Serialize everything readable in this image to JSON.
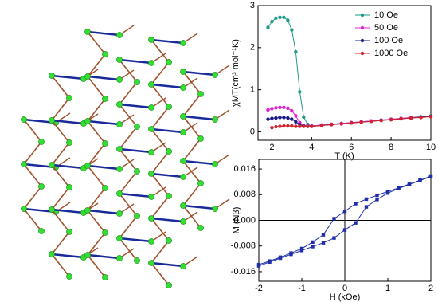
{
  "chart_data": [
    {
      "type": "line",
      "x_label": "T (K)",
      "y_label": "χMT(cm³ mol⁻¹K)",
      "x": [
        1.8,
        2.0,
        2.2,
        2.4,
        2.6,
        2.8,
        3.0,
        3.2,
        3.4,
        3.6,
        3.8,
        4.0,
        4.5,
        5,
        5.5,
        6,
        6.5,
        7,
        7.5,
        8,
        8.5,
        9,
        9.5,
        10
      ],
      "series": [
        {
          "name": "10 Oe",
          "color": "#1f9a8a",
          "values": [
            2.48,
            2.62,
            2.7,
            2.72,
            2.72,
            2.65,
            2.42,
            1.9,
            0.95,
            0.35,
            0.18,
            0.14,
            0.16,
            0.18,
            0.2,
            0.22,
            0.24,
            0.26,
            0.28,
            0.3,
            0.32,
            0.34,
            0.36,
            0.38
          ]
        },
        {
          "name": "50 Oe",
          "color": "#e020d0",
          "values": [
            0.52,
            0.55,
            0.57,
            0.58,
            0.58,
            0.56,
            0.5,
            0.38,
            0.22,
            0.15,
            0.14,
            0.14,
            0.16,
            0.18,
            0.2,
            0.22,
            0.24,
            0.26,
            0.28,
            0.3,
            0.32,
            0.34,
            0.35,
            0.37
          ]
        },
        {
          "name": "100 Oe",
          "color": "#1c1c8c",
          "values": [
            0.3,
            0.32,
            0.33,
            0.34,
            0.34,
            0.33,
            0.3,
            0.24,
            0.17,
            0.14,
            0.13,
            0.13,
            0.15,
            0.17,
            0.19,
            0.21,
            0.23,
            0.25,
            0.27,
            0.29,
            0.31,
            0.33,
            0.35,
            0.37
          ]
        },
        {
          "name": "1000 Oe",
          "color": "#d8202a",
          "values": [
            null,
            0.1,
            0.12,
            0.13,
            0.14,
            0.14,
            0.14,
            0.13,
            0.13,
            0.13,
            0.13,
            0.13,
            0.15,
            0.17,
            0.19,
            0.21,
            0.23,
            0.25,
            0.27,
            0.29,
            0.31,
            0.33,
            0.34,
            0.36
          ]
        }
      ],
      "xlim": [
        1.3,
        10
      ],
      "xticks": [
        2,
        4,
        6,
        8,
        10
      ],
      "ylim": [
        -0.2,
        3
      ],
      "yticks": [
        0,
        1,
        2,
        3
      ],
      "legend": "top-right"
    },
    {
      "type": "line",
      "x_label": "H (kOe)",
      "y_label": "M (Nβ)",
      "series": [
        {
          "color": "#1f2fa8",
          "x": [
            2,
            1.75,
            1.5,
            1.25,
            1,
            0.75,
            0.5,
            0.25,
            0,
            -0.25,
            -0.5,
            -0.75,
            -1,
            -1.25,
            -1.5,
            -1.75,
            -2
          ],
          "values": [
            0.0138,
            0.0125,
            0.0113,
            0.0101,
            0.009,
            0.0078,
            0.0066,
            0.0052,
            0.0028,
            0.0005,
            -0.0045,
            -0.0068,
            -0.0088,
            -0.0102,
            -0.0115,
            -0.0127,
            -0.0138
          ]
        },
        {
          "color": "#1f2fa8",
          "x": [
            -2,
            -1.75,
            -1.5,
            -1.25,
            -1,
            -0.75,
            -0.5,
            -0.25,
            0,
            0.25,
            0.5,
            0.75,
            1,
            1.25,
            1.5,
            1.75,
            2
          ],
          "values": [
            -0.0142,
            -0.013,
            -0.0118,
            -0.0106,
            -0.0094,
            -0.0082,
            -0.007,
            -0.0055,
            -0.003,
            -0.0008,
            0.0042,
            0.0065,
            0.0085,
            0.0099,
            0.0112,
            0.0124,
            0.0136
          ]
        }
      ],
      "xlim": [
        -2,
        2
      ],
      "xticks": [
        -2,
        -1,
        0,
        1,
        2
      ],
      "ylim": [
        -0.019,
        0.019
      ],
      "yticks": [
        -0.016,
        -0.008,
        {
          "value": 0,
          "label": "0.000"
        },
        0.008,
        0.016
      ],
      "zero_lines": true
    }
  ]
}
